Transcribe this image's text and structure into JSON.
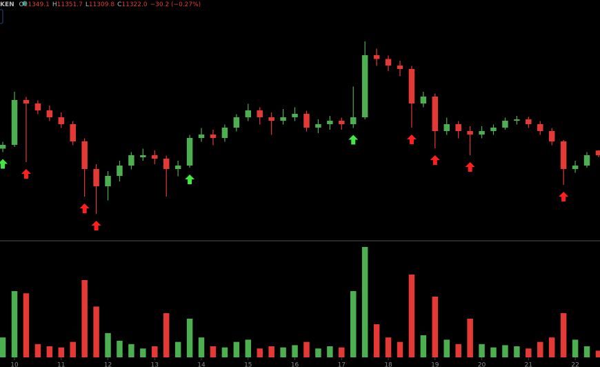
{
  "header": {
    "symbol": "KEN",
    "items": [
      {
        "label": "O",
        "value": "11349.1"
      },
      {
        "label": "H",
        "value": "11351.7"
      },
      {
        "label": "L",
        "value": "11309.8"
      },
      {
        "label": "C",
        "value": "11322.0"
      }
    ],
    "change": "−30.2 (−0.27%)"
  },
  "chart_data": {
    "type": "candlestick",
    "x": [
      9.75,
      10,
      10.25,
      10.5,
      10.75,
      11,
      11.25,
      11.5,
      11.75,
      12,
      12.25,
      12.5,
      12.75,
      13,
      13.25,
      13.5,
      13.75,
      14,
      14.25,
      14.5,
      14.75,
      15,
      15.25,
      15.5,
      15.75,
      16,
      16.25,
      16.5,
      16.75,
      17,
      17.25,
      17.5,
      17.75,
      18,
      18.25,
      18.5,
      18.75,
      19,
      19.25,
      19.5,
      19.75,
      20,
      20.25,
      20.5,
      20.75,
      21,
      21.25,
      21.5,
      21.75,
      22,
      22.25,
      22.5
    ],
    "open": [
      11360,
      11382,
      11642,
      11622,
      11582,
      11542,
      11502,
      11402,
      11242,
      11142,
      11202,
      11262,
      11310,
      11322,
      11302,
      11242,
      11262,
      11422,
      11442,
      11422,
      11482,
      11542,
      11582,
      11542,
      11522,
      11542,
      11562,
      11482,
      11502,
      11522,
      11502,
      11542,
      11902,
      11880,
      11842,
      11822,
      11622,
      11662,
      11462,
      11502,
      11462,
      11442,
      11462,
      11482,
      11522,
      11530,
      11502,
      11462,
      11402,
      11242,
      11262,
      11349.1
    ],
    "high": [
      11400,
      11690,
      11660,
      11640,
      11610,
      11570,
      11520,
      11420,
      11270,
      11230,
      11290,
      11340,
      11360,
      11350,
      11320,
      11290,
      11440,
      11480,
      11470,
      11500,
      11560,
      11620,
      11600,
      11570,
      11590,
      11600,
      11580,
      11530,
      11550,
      11540,
      11720,
      11982,
      11940,
      11900,
      11870,
      11840,
      11690,
      11680,
      11540,
      11520,
      11490,
      11490,
      11500,
      11540,
      11550,
      11545,
      11520,
      11480,
      11410,
      11290,
      11340,
      11351.7
    ],
    "low": [
      11340,
      11370,
      11282,
      11560,
      11520,
      11480,
      11380,
      11082,
      10982,
      11060,
      11170,
      11240,
      11290,
      11270,
      11082,
      11200,
      11250,
      11400,
      11380,
      11400,
      11460,
      11520,
      11500,
      11440,
      11500,
      11520,
      11460,
      11450,
      11470,
      11470,
      11480,
      11530,
      11840,
      11810,
      11780,
      11482,
      11600,
      11362,
      11440,
      11420,
      11322,
      11420,
      11440,
      11470,
      11500,
      11480,
      11440,
      11380,
      11150,
      11220,
      11250,
      11309.8
    ],
    "close": [
      11382,
      11642,
      11622,
      11582,
      11542,
      11502,
      11402,
      11242,
      11142,
      11202,
      11262,
      11322,
      11322,
      11302,
      11242,
      11262,
      11422,
      11442,
      11422,
      11482,
      11542,
      11582,
      11542,
      11522,
      11542,
      11562,
      11482,
      11502,
      11522,
      11502,
      11542,
      11902,
      11880,
      11842,
      11822,
      11622,
      11662,
      11462,
      11502,
      11462,
      11442,
      11462,
      11482,
      11522,
      11530,
      11502,
      11462,
      11402,
      11242,
      11262,
      11322,
      11322
    ],
    "volume": [
      18,
      60,
      58,
      12,
      10,
      9,
      14,
      70,
      46,
      22,
      15,
      12,
      8,
      10,
      40,
      14,
      35,
      18,
      10,
      9,
      14,
      16,
      8,
      10,
      9,
      11,
      14,
      8,
      10,
      9,
      60,
      100,
      30,
      18,
      14,
      75,
      20,
      55,
      16,
      12,
      35,
      12,
      9,
      11,
      10,
      8,
      14,
      18,
      40,
      16,
      10,
      6
    ],
    "up_color": "#4caf50",
    "down_color": "#e53935",
    "xlim": [
      9.69,
      22.53
    ],
    "xticks": [
      10,
      11,
      12,
      13,
      14,
      15,
      16,
      17,
      18,
      19,
      20,
      21,
      22
    ],
    "markers": [
      {
        "index": 0,
        "color": "#42e842"
      },
      {
        "index": 2,
        "color": "#ff1f1f"
      },
      {
        "index": 7,
        "color": "#ff1f1f"
      },
      {
        "index": 8,
        "color": "#ff1f1f"
      },
      {
        "index": 16,
        "color": "#42e842"
      },
      {
        "index": 30,
        "color": "#42e842"
      },
      {
        "index": 35,
        "color": "#ff1f1f"
      },
      {
        "index": 37,
        "color": "#ff1f1f"
      },
      {
        "index": 40,
        "color": "#ff1f1f"
      },
      {
        "index": 48,
        "color": "#ff1f1f"
      }
    ]
  }
}
